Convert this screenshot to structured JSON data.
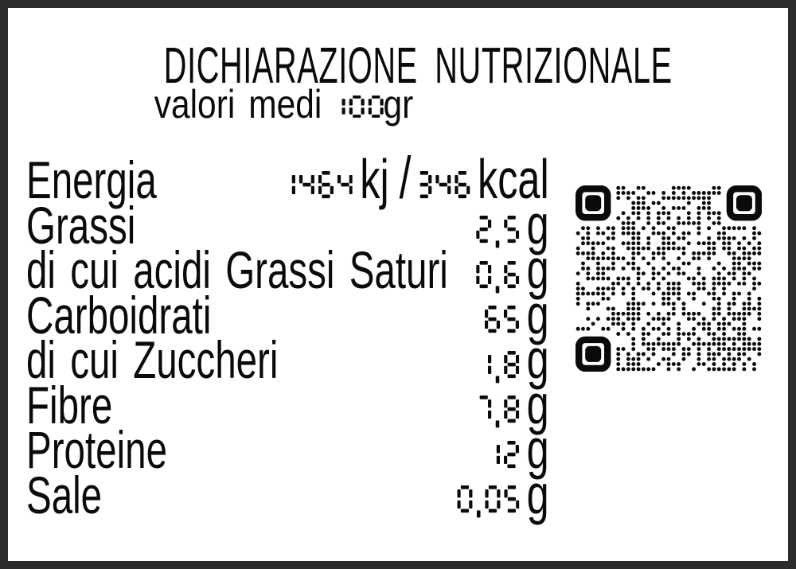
{
  "label": {
    "title": "DICHIARAZIONE NUTRIZIONALE",
    "subtitle": {
      "prefix": "valori medi",
      "amount": "100",
      "unit": "gr"
    },
    "rows": [
      {
        "label": "Energia",
        "separator": "/",
        "values": [
          {
            "num": "1464",
            "unit": "kj"
          },
          {
            "num": "346",
            "unit": "kcal"
          }
        ]
      },
      {
        "label": "Grassi",
        "values": [
          {
            "num": "2,5",
            "unit": "g"
          }
        ]
      },
      {
        "label": "di cui acidi Grassi Saturi",
        "values": [
          {
            "num": "0,6",
            "unit": "g"
          }
        ]
      },
      {
        "label": "Carboidrati",
        "values": [
          {
            "num": "65",
            "unit": "g"
          }
        ]
      },
      {
        "label": "di cui Zuccheri",
        "values": [
          {
            "num": "1,8",
            "unit": "g"
          }
        ]
      },
      {
        "label": "Fibre",
        "values": [
          {
            "num": "7,8",
            "unit": "g"
          }
        ]
      },
      {
        "label": "Proteine",
        "values": [
          {
            "num": "12",
            "unit": "g"
          }
        ]
      },
      {
        "label": "Sale",
        "values": [
          {
            "num": "0,05",
            "unit": "g"
          }
        ]
      }
    ],
    "qr_code": {
      "icon": "qr-code",
      "style": "round-dots",
      "modules": 37,
      "finder_corners": 3
    },
    "colors": {
      "ink": "#0a0a0a",
      "border": "#2e2b2c",
      "background": "#ffffff"
    }
  }
}
